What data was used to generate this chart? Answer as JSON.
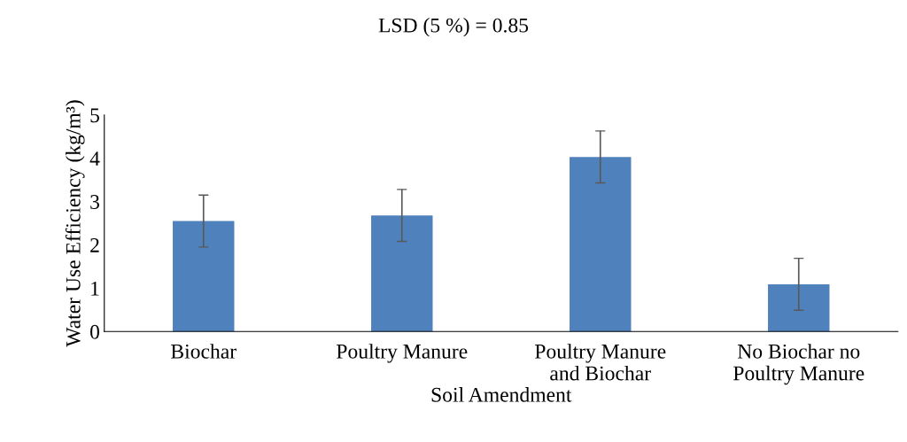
{
  "chart_data": {
    "type": "bar",
    "title": "LSD (5 %) = 0.85",
    "xlabel": "Soil Amendment",
    "ylabel": "Water Use Efficiency (kg/m³)",
    "categories": [
      "Biochar",
      "Poultry Manure",
      "Poultry Manure\nand Biochar",
      "No Biochar no\nPoultry Manure"
    ],
    "values": [
      2.55,
      2.68,
      4.03,
      1.09
    ],
    "errors": [
      0.6,
      0.6,
      0.6,
      0.6
    ],
    "color": "#4f81bd",
    "ylim": [
      0,
      5
    ],
    "yticks": [
      0,
      1,
      2,
      3,
      4,
      5
    ],
    "grid": false
  }
}
